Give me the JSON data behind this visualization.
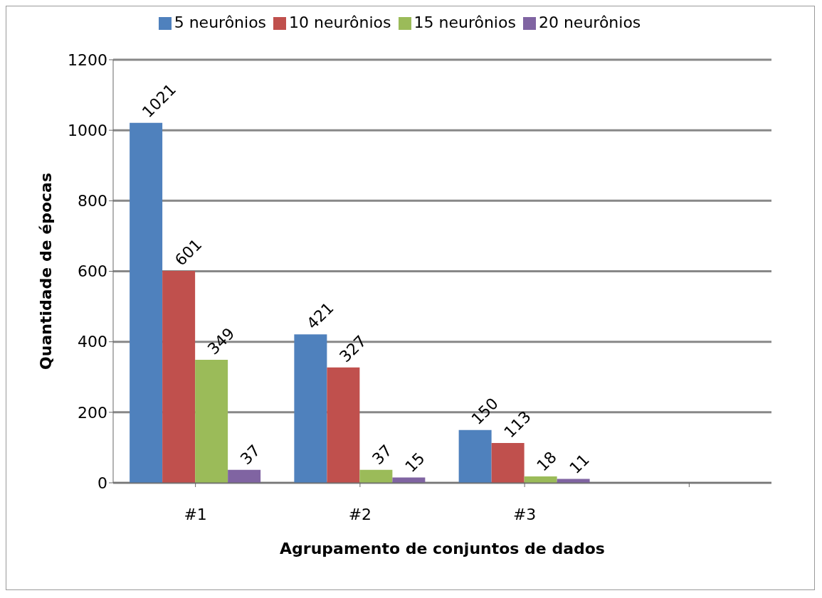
{
  "chart_data": {
    "type": "bar",
    "xlabel": "Agrupamento de conjuntos de dados",
    "ylabel": "Quantidade de épocas",
    "categories": [
      "#1",
      "#2",
      "#3",
      null
    ],
    "series": [
      {
        "name": "5 neurônios",
        "color": "#4f81bd",
        "values": [
          1021,
          421,
          150,
          null
        ]
      },
      {
        "name": "10 neurônios",
        "color": "#c0504d",
        "values": [
          601,
          327,
          113,
          null
        ]
      },
      {
        "name": "15 neurônios",
        "color": "#9bbb59",
        "values": [
          349,
          37,
          18,
          null
        ]
      },
      {
        "name": "20 neurônios",
        "color": "#8064a2",
        "values": [
          37,
          15,
          11,
          null
        ]
      }
    ],
    "ylim": [
      0,
      1200
    ],
    "yticks": [
      0,
      200,
      400,
      600,
      800,
      1000,
      1200
    ],
    "grid": "y",
    "legend": "top",
    "data_labels": true
  }
}
